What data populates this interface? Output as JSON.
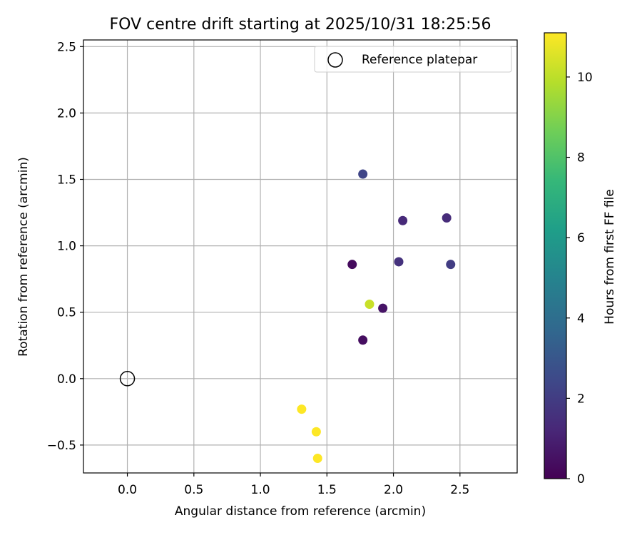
{
  "chart_data": {
    "type": "scatter",
    "title": "FOV centre drift starting at 2025/10/31 18:25:56",
    "xlabel": "Angular distance from reference (arcmin)",
    "ylabel": "Rotation from reference (arcmin)",
    "xlim": [
      -0.33,
      2.93
    ],
    "ylim": [
      -0.71,
      2.55
    ],
    "xticks": [
      0.0,
      0.5,
      1.0,
      1.5,
      2.0,
      2.5
    ],
    "xtick_labels": [
      "0.0",
      "0.5",
      "1.0",
      "1.5",
      "2.0",
      "2.5"
    ],
    "yticks": [
      -0.5,
      0.0,
      0.5,
      1.0,
      1.5,
      2.0,
      2.5
    ],
    "ytick_labels": [
      "−0.5",
      "0.0",
      "0.5",
      "1.0",
      "1.5",
      "2.0",
      "2.5"
    ],
    "grid": true,
    "legend": {
      "location": "top-right",
      "entries": [
        "Reference platepar"
      ]
    },
    "reference_point": {
      "x": 0.0,
      "y": 0.0
    },
    "points": [
      {
        "x": 1.69,
        "y": 0.86,
        "hours": 0.3
      },
      {
        "x": 1.77,
        "y": 0.29,
        "hours": 0.4
      },
      {
        "x": 1.92,
        "y": 0.53,
        "hours": 0.6
      },
      {
        "x": 2.07,
        "y": 1.19,
        "hours": 1.3
      },
      {
        "x": 2.04,
        "y": 0.88,
        "hours": 1.6
      },
      {
        "x": 2.4,
        "y": 1.21,
        "hours": 1.4
      },
      {
        "x": 1.77,
        "y": 1.54,
        "hours": 2.3
      },
      {
        "x": 2.43,
        "y": 0.86,
        "hours": 2.0
      },
      {
        "x": 1.82,
        "y": 0.56,
        "hours": 10.2
      },
      {
        "x": 1.31,
        "y": -0.23,
        "hours": 11.1
      },
      {
        "x": 1.42,
        "y": -0.4,
        "hours": 11.1
      },
      {
        "x": 1.43,
        "y": -0.6,
        "hours": 11.1
      }
    ],
    "colorbar": {
      "label": "Hours from first FF file",
      "colormap": "viridis",
      "range": [
        0,
        11.1
      ],
      "ticks": [
        0,
        2,
        4,
        6,
        8,
        10
      ],
      "tick_labels": [
        "0",
        "2",
        "4",
        "6",
        "8",
        "10"
      ]
    }
  }
}
